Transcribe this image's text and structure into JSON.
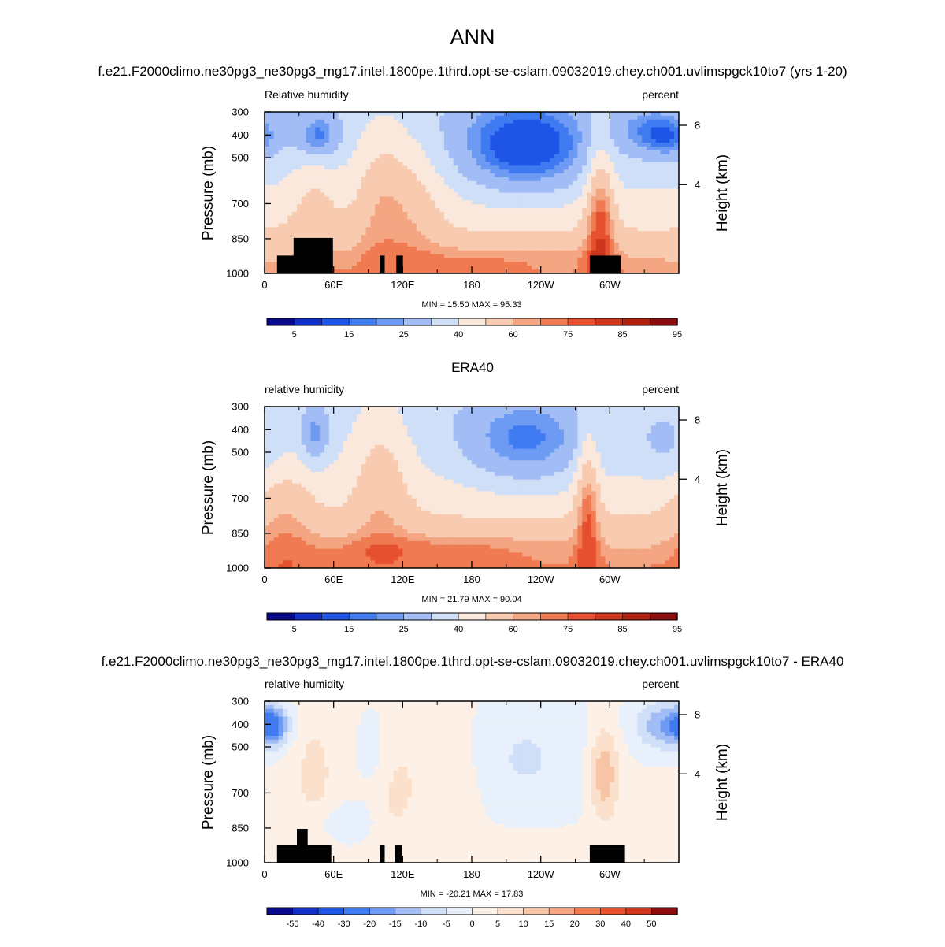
{
  "figure": {
    "season": "ANN",
    "case_title": "f.e21.F2000climo.ne30pg3_ne30pg3_mg17.intel.1800pe.1thrd.opt-se-cslam.09032019.chey.ch001.uvlimspgck10to7 (yrs 1-20)",
    "obs_title": "ERA40",
    "diff_title": "f.e21.F2000climo.ne30pg3_ne30pg3_mg17.intel.1800pe.1thrd.opt-se-cslam.09032019.chey.ch001.uvlimspgck10to7 - ERA40"
  },
  "chart_data": [
    {
      "type": "heatmap",
      "name": "model",
      "variable_label": "Relative humidity",
      "units_label": "percent",
      "ylabel": "Pressure (mb)",
      "ylabel_right": "Height (km)",
      "x_ticks": [
        "0",
        "60E",
        "120E",
        "180",
        "120W",
        "60W"
      ],
      "y_ticks": [
        "300",
        "400",
        "500",
        "700",
        "850",
        "1000"
      ],
      "y_ticks_right": [
        "8",
        "4"
      ],
      "stats": "MIN =  15.50  MAX =  95.33",
      "colorbar_labels": [
        "5",
        "15",
        "25",
        "40",
        "60",
        "75",
        "85",
        "95"
      ],
      "min": 15.5,
      "max": 95.33
    },
    {
      "type": "heatmap",
      "name": "obs",
      "variable_label": "relative humidity",
      "units_label": "percent",
      "ylabel": "Pressure (mb)",
      "ylabel_right": "Height (km)",
      "x_ticks": [
        "0",
        "60E",
        "120E",
        "180",
        "120W",
        "60W"
      ],
      "y_ticks": [
        "300",
        "400",
        "500",
        "700",
        "850",
        "1000"
      ],
      "y_ticks_right": [
        "8",
        "4"
      ],
      "stats": "MIN =  21.79  MAX =  90.04",
      "colorbar_labels": [
        "5",
        "15",
        "25",
        "40",
        "60",
        "75",
        "85",
        "95"
      ],
      "min": 21.79,
      "max": 90.04
    },
    {
      "type": "heatmap",
      "name": "diff",
      "variable_label": "relative humidity",
      "units_label": "percent",
      "ylabel": "Pressure (mb)",
      "ylabel_right": "Height (km)",
      "x_ticks": [
        "0",
        "60E",
        "120E",
        "180",
        "120W",
        "60W"
      ],
      "y_ticks": [
        "300",
        "400",
        "500",
        "700",
        "850",
        "1000"
      ],
      "y_ticks_right": [
        "8",
        "4"
      ],
      "stats": "MIN = -20.21  MAX =  17.83",
      "colorbar_labels": [
        "-50",
        "-40",
        "-30",
        "-20",
        "-15",
        "-10",
        "-5",
        "0",
        "5",
        "10",
        "15",
        "20",
        "30",
        "40",
        "50"
      ],
      "min": -20.21,
      "max": 17.83
    }
  ],
  "palettes": {
    "abs": [
      "#0a0a8c",
      "#1230c8",
      "#1f55e6",
      "#3f7af0",
      "#6d9af2",
      "#a2bdf5",
      "#cfdff8",
      "#fbe8dd",
      "#f8cbb0",
      "#f4a582",
      "#f07a52",
      "#e6502e",
      "#d0361e",
      "#b02010",
      "#8a0c0c"
    ],
    "diff": [
      "#0a0a8c",
      "#1230c8",
      "#1f55e6",
      "#3f7af0",
      "#6d9af2",
      "#a2bdf5",
      "#cfdff8",
      "#e8f0fb",
      "#fdf0e6",
      "#fbe0cc",
      "#f8c4a6",
      "#f4a582",
      "#f07a52",
      "#e6502e",
      "#d0361e",
      "#8a0c0c"
    ]
  }
}
